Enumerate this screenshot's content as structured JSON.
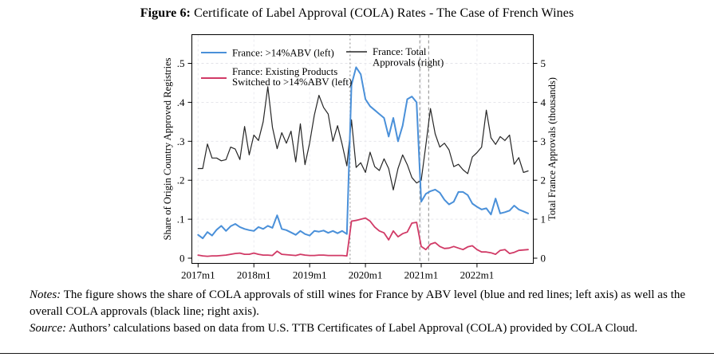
{
  "figure": {
    "label": "Figure 6:",
    "title": " Certificate of Label Approval (COLA) Rates - The Case of French Wines"
  },
  "chart_data": {
    "type": "line",
    "title": "Certificate of Label Approval (COLA) Rates - The Case of French Wines",
    "x_unit": "month",
    "x_start": "2017m1",
    "x_end": "2022m12",
    "n_months": 72,
    "x_tick_labels": [
      "2017m1",
      "2018m1",
      "2019m1",
      "2020m1",
      "2021m1",
      "2022m1"
    ],
    "x_tick_indices": [
      0,
      12,
      24,
      36,
      48,
      60
    ],
    "grid": true,
    "left_axis": {
      "label": "Share of Origin Country Approved Registries",
      "range": [
        0,
        0.5
      ],
      "tick_values": [
        0,
        0.1,
        0.2,
        0.3,
        0.4,
        0.5
      ],
      "tick_labels": [
        "0",
        ".1",
        ".2",
        ".3",
        ".4",
        ".5"
      ]
    },
    "right_axis": {
      "label": "Total France Approvals (thousands)",
      "range": [
        0,
        5
      ],
      "tick_values": [
        0,
        1,
        2,
        3,
        4,
        5
      ],
      "tick_labels": [
        "0",
        "1",
        "2",
        "3",
        "4",
        "5"
      ]
    },
    "vlines": {
      "color": "#8a8a8a",
      "style": "dashed",
      "month_positions": [
        32.7,
        47.7,
        49.6
      ],
      "approx_dates": [
        "2019m10",
        "2021m1",
        "2021m3"
      ]
    },
    "series": [
      {
        "name": "France: Total Approvals (right)",
        "axis": "right",
        "color": "#262626",
        "width": 1.2,
        "values": [
          2.3,
          2.3,
          2.93,
          2.57,
          2.57,
          2.5,
          2.53,
          2.85,
          2.8,
          2.53,
          3.38,
          2.65,
          3.16,
          3.02,
          3.5,
          4.4,
          3.36,
          2.81,
          3.22,
          2.95,
          3.26,
          2.47,
          3.45,
          2.4,
          2.95,
          3.67,
          4.18,
          3.87,
          3.7,
          3.0,
          3.4,
          2.92,
          2.37,
          3.55,
          2.33,
          2.45,
          2.2,
          2.72,
          2.35,
          2.25,
          2.55,
          2.3,
          1.75,
          2.3,
          2.65,
          2.4,
          2.07,
          1.93,
          2.0,
          2.9,
          3.84,
          3.19,
          2.85,
          2.95,
          2.78,
          2.35,
          2.41,
          2.27,
          2.17,
          2.6,
          2.71,
          2.85,
          3.8,
          3.09,
          2.92,
          3.12,
          3.02,
          3.16,
          2.41,
          2.58,
          2.2,
          2.24
        ]
      },
      {
        "name": "France: >14%ABV (left)",
        "axis": "left",
        "color": "#4a90d9",
        "width": 2.0,
        "values": [
          0.06,
          0.051,
          0.067,
          0.058,
          0.073,
          0.083,
          0.07,
          0.082,
          0.088,
          0.08,
          0.075,
          0.072,
          0.07,
          0.08,
          0.075,
          0.083,
          0.078,
          0.11,
          0.075,
          0.072,
          0.066,
          0.06,
          0.07,
          0.062,
          0.058,
          0.07,
          0.068,
          0.071,
          0.065,
          0.07,
          0.064,
          0.07,
          0.062,
          0.445,
          0.49,
          0.472,
          0.408,
          0.39,
          0.38,
          0.37,
          0.36,
          0.312,
          0.36,
          0.3,
          0.34,
          0.408,
          0.415,
          0.4,
          0.145,
          0.165,
          0.172,
          0.176,
          0.168,
          0.15,
          0.138,
          0.145,
          0.17,
          0.17,
          0.162,
          0.14,
          0.132,
          0.125,
          0.128,
          0.112,
          0.153,
          0.115,
          0.118,
          0.122,
          0.135,
          0.125,
          0.12,
          0.115
        ]
      },
      {
        "name": "France: Existing Products Switched to >14%ABV (left)",
        "axis": "left",
        "color": "#d13a66",
        "width": 1.8,
        "values": [
          0.008,
          0.006,
          0.005,
          0.006,
          0.006,
          0.007,
          0.008,
          0.01,
          0.012,
          0.013,
          0.01,
          0.01,
          0.013,
          0.01,
          0.008,
          0.008,
          0.007,
          0.018,
          0.01,
          0.009,
          0.008,
          0.007,
          0.01,
          0.008,
          0.007,
          0.007,
          0.008,
          0.008,
          0.007,
          0.007,
          0.007,
          0.007,
          0.006,
          0.095,
          0.097,
          0.1,
          0.103,
          0.095,
          0.08,
          0.07,
          0.065,
          0.047,
          0.07,
          0.055,
          0.063,
          0.067,
          0.09,
          0.092,
          0.03,
          0.022,
          0.036,
          0.04,
          0.03,
          0.025,
          0.026,
          0.03,
          0.026,
          0.022,
          0.029,
          0.032,
          0.022,
          0.016,
          0.016,
          0.014,
          0.01,
          0.02,
          0.022,
          0.012,
          0.015,
          0.02,
          0.021,
          0.022
        ]
      }
    ]
  },
  "legend": {
    "item1": {
      "line1": "France: >14%ABV (left)"
    },
    "item2": {
      "line1": "France: Existing Products",
      "line2": "Switched to >14%ABV (left)"
    },
    "item3": {
      "line1": "France: Total",
      "line2": "Approvals (right)"
    }
  },
  "notes": {
    "notes_label": "Notes:",
    "notes_text": " The figure shows the share of COLA approvals of still wines for France by ABV level (blue and red lines; left axis) as well as the overall COLA approvals (black line; right axis).",
    "source_label": "Source:",
    "source_text": " Authors’ calculations based on data from U.S. TTB Certificates of Label Approval (COLA) provided by COLA Cloud."
  },
  "colors": {
    "abv_line": "#4a90d9",
    "switched_line": "#d13a66",
    "total_line": "#262626",
    "event_line": "#8a8a8a",
    "grid_line": "#e2e2e8"
  }
}
